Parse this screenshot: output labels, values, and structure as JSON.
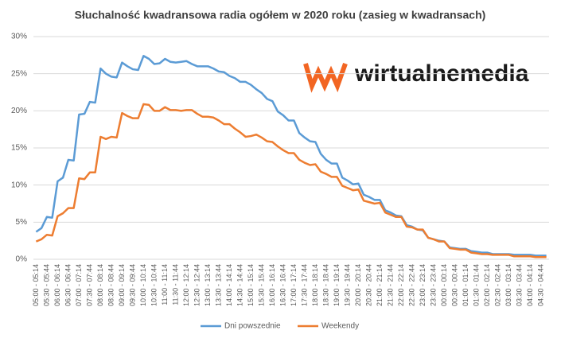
{
  "chart_data": {
    "type": "line",
    "title": "Słuchalność  kwadransowa  radia  ogółem  w 2020 roku (zasieg w kwadransach)",
    "annotation": "wirtualnemedia",
    "categories": [
      "05:00 - 05:14",
      null,
      "05:30 - 05:44",
      null,
      "06:00 - 06:14",
      null,
      "06:30 - 06:44",
      null,
      "07:00 - 07:14",
      null,
      "07:30 - 07:44",
      null,
      "08:00 - 08:14",
      null,
      "08:30 - 08:44",
      null,
      "09:00 - 09:14",
      null,
      "09:30 - 09:44",
      null,
      "10:00 - 10:14",
      null,
      "10:30 - 10:44",
      null,
      "11:00 - 11:14",
      null,
      "11:30 - 11:44",
      null,
      "12:00 - 12:14",
      null,
      "12:30 - 12:44",
      null,
      "13:00 - 13:14",
      null,
      "13:30 - 13:44",
      null,
      "14:00 - 14:14",
      null,
      "14:30 - 14:44",
      null,
      "15:00 - 15:14",
      null,
      "15:30 - 15:44",
      null,
      "16:00 - 16:14",
      null,
      "16:30 - 16:44",
      null,
      "17:00 - 17:14",
      null,
      "17:30 - 17:44",
      null,
      "18:00 - 18:14",
      null,
      "18:30 - 18:44",
      null,
      "19:00 - 19:14",
      null,
      "19:30 - 19:44",
      null,
      "20:00 - 20:14",
      null,
      "20:30 - 20:44",
      null,
      "21:00 - 21:14",
      null,
      "21:30 - 21:44",
      null,
      "22:00 - 22:14",
      null,
      "22:30 - 22:44",
      null,
      "23:00 - 23:14",
      null,
      "23:30 - 23:44",
      null,
      "00:00 - 00:14",
      null,
      "00:30 - 00:44",
      null,
      "01:00 - 01:14",
      null,
      "01:30 - 01:44",
      null,
      "02:00 - 02:14",
      null,
      "02:30 - 02:44",
      null,
      "03:00 - 03:14",
      null,
      "03:30 - 03:44",
      null,
      "04:00 - 04:14",
      null,
      "04:30 - 04:44",
      null
    ],
    "series": [
      {
        "name": "Dni powszednie",
        "color": "#5b9bd5",
        "values": [
          3.7,
          4.2,
          5.7,
          5.6,
          10.5,
          11.0,
          13.4,
          13.3,
          19.5,
          19.6,
          21.2,
          21.1,
          25.7,
          25.0,
          24.6,
          24.5,
          26.5,
          26.0,
          25.6,
          25.5,
          27.4,
          27.0,
          26.3,
          26.4,
          27.0,
          26.6,
          26.5,
          26.6,
          26.7,
          26.3,
          26.0,
          26.0,
          26.0,
          25.7,
          25.3,
          25.2,
          24.7,
          24.4,
          23.9,
          23.9,
          23.5,
          22.9,
          22.4,
          21.6,
          21.3,
          19.9,
          19.4,
          18.7,
          18.7,
          17.0,
          16.4,
          15.9,
          15.8,
          14.2,
          13.4,
          12.9,
          12.9,
          11.0,
          10.6,
          10.1,
          10.2,
          8.7,
          8.4,
          8.0,
          8.0,
          6.6,
          6.3,
          5.9,
          5.8,
          4.6,
          4.4,
          4.0,
          3.9,
          2.9,
          2.7,
          2.5,
          2.4,
          1.6,
          1.5,
          1.4,
          1.4,
          1.1,
          1.0,
          0.9,
          0.9,
          0.7,
          0.7,
          0.7,
          0.7,
          0.6,
          0.6,
          0.6,
          0.6,
          0.5,
          0.5,
          0.5
        ]
      },
      {
        "name": "Weekendy",
        "color": "#ed7d31",
        "values": [
          2.4,
          2.7,
          3.3,
          3.2,
          5.8,
          6.2,
          6.9,
          6.9,
          10.9,
          10.8,
          11.7,
          11.7,
          16.5,
          16.2,
          16.5,
          16.4,
          19.7,
          19.3,
          19.0,
          19.0,
          20.9,
          20.8,
          20.0,
          20.0,
          20.5,
          20.1,
          20.1,
          20.0,
          20.1,
          20.1,
          19.6,
          19.2,
          19.2,
          19.1,
          18.7,
          18.2,
          18.2,
          17.6,
          17.1,
          16.5,
          16.6,
          16.8,
          16.4,
          15.9,
          15.8,
          15.2,
          14.7,
          14.3,
          14.3,
          13.4,
          13.0,
          12.7,
          12.8,
          11.8,
          11.5,
          11.1,
          11.1,
          9.9,
          9.6,
          9.3,
          9.4,
          7.9,
          7.7,
          7.5,
          7.6,
          6.3,
          6.0,
          5.7,
          5.7,
          4.4,
          4.3,
          4.0,
          4.0,
          2.9,
          2.7,
          2.4,
          2.4,
          1.5,
          1.4,
          1.3,
          1.3,
          0.9,
          0.8,
          0.7,
          0.7,
          0.6,
          0.6,
          0.6,
          0.6,
          0.4,
          0.4,
          0.4,
          0.4,
          0.3,
          0.3,
          0.3
        ]
      }
    ],
    "ylim": [
      0,
      30
    ],
    "yticks": [
      {
        "value": 0,
        "label": "0%"
      },
      {
        "value": 5,
        "label": "5%"
      },
      {
        "value": 10,
        "label": "10%"
      },
      {
        "value": 15,
        "label": "15%"
      },
      {
        "value": 20,
        "label": "20%"
      },
      {
        "value": 25,
        "label": "25%"
      },
      {
        "value": 30,
        "label": "30%"
      }
    ],
    "grid": true,
    "legend": "bottom"
  }
}
